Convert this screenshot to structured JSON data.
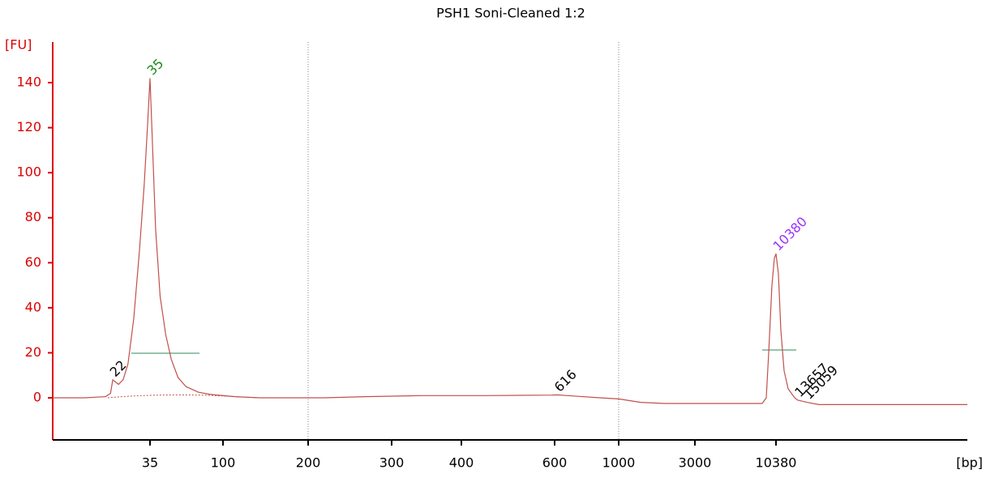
{
  "chart_data": {
    "type": "line",
    "title": "PSH1 Soni-Cleaned 1:2",
    "y_label": "[FU]",
    "x_label": "[bp]",
    "color": "#c0504d",
    "axis_color": "#dd0000",
    "x": [
      1,
      12.3,
      19.4,
      21.2,
      22,
      23,
      24,
      25.6,
      27.3,
      29.3,
      31.3,
      33,
      34.1,
      35,
      37,
      40,
      44,
      49,
      54,
      60,
      67,
      78,
      89,
      114,
      143,
      219,
      268,
      343,
      454,
      593,
      616,
      681,
      883,
      1000,
      1574,
      2213,
      9125,
      9494,
      9716,
      10011,
      10232,
      10380,
      10749,
      11118,
      11610,
      12225,
      13209,
      13657,
      15059,
      16900,
      39400
    ],
    "values": [
      0,
      0,
      0.5,
      2,
      8,
      7,
      6,
      8,
      15,
      35,
      65,
      95,
      120,
      142,
      115,
      75,
      45,
      28,
      17,
      9,
      5,
      2.5,
      1.5,
      0.5,
      0,
      0,
      0.5,
      1,
      1,
      1.2,
      1.3,
      1,
      0,
      -0.5,
      -2,
      -2.5,
      -2.5,
      0,
      20,
      50,
      62,
      64,
      55,
      30,
      12,
      4,
      0,
      -1,
      -2,
      -3,
      -3
    ],
    "xlim": [
      1,
      39400
    ],
    "xticks": [
      35,
      100,
      200,
      300,
      400,
      600,
      1000,
      3000,
      10380
    ],
    "ylim": [
      -18.7,
      158
    ],
    "yticks": [
      0,
      20,
      40,
      60,
      80,
      100,
      120,
      140
    ],
    "marker_lines": [
      200,
      1000
    ],
    "peaks": [
      {
        "x": 22,
        "color": "#000000"
      },
      {
        "x": 35,
        "color": "#1a8a1a"
      },
      {
        "x": 616,
        "color": "#000000"
      },
      {
        "x": 10380,
        "color": "#9933ff"
      },
      {
        "x": 13657,
        "color": "#000000"
      },
      {
        "x": 15059,
        "color": "#000000"
      }
    ]
  }
}
